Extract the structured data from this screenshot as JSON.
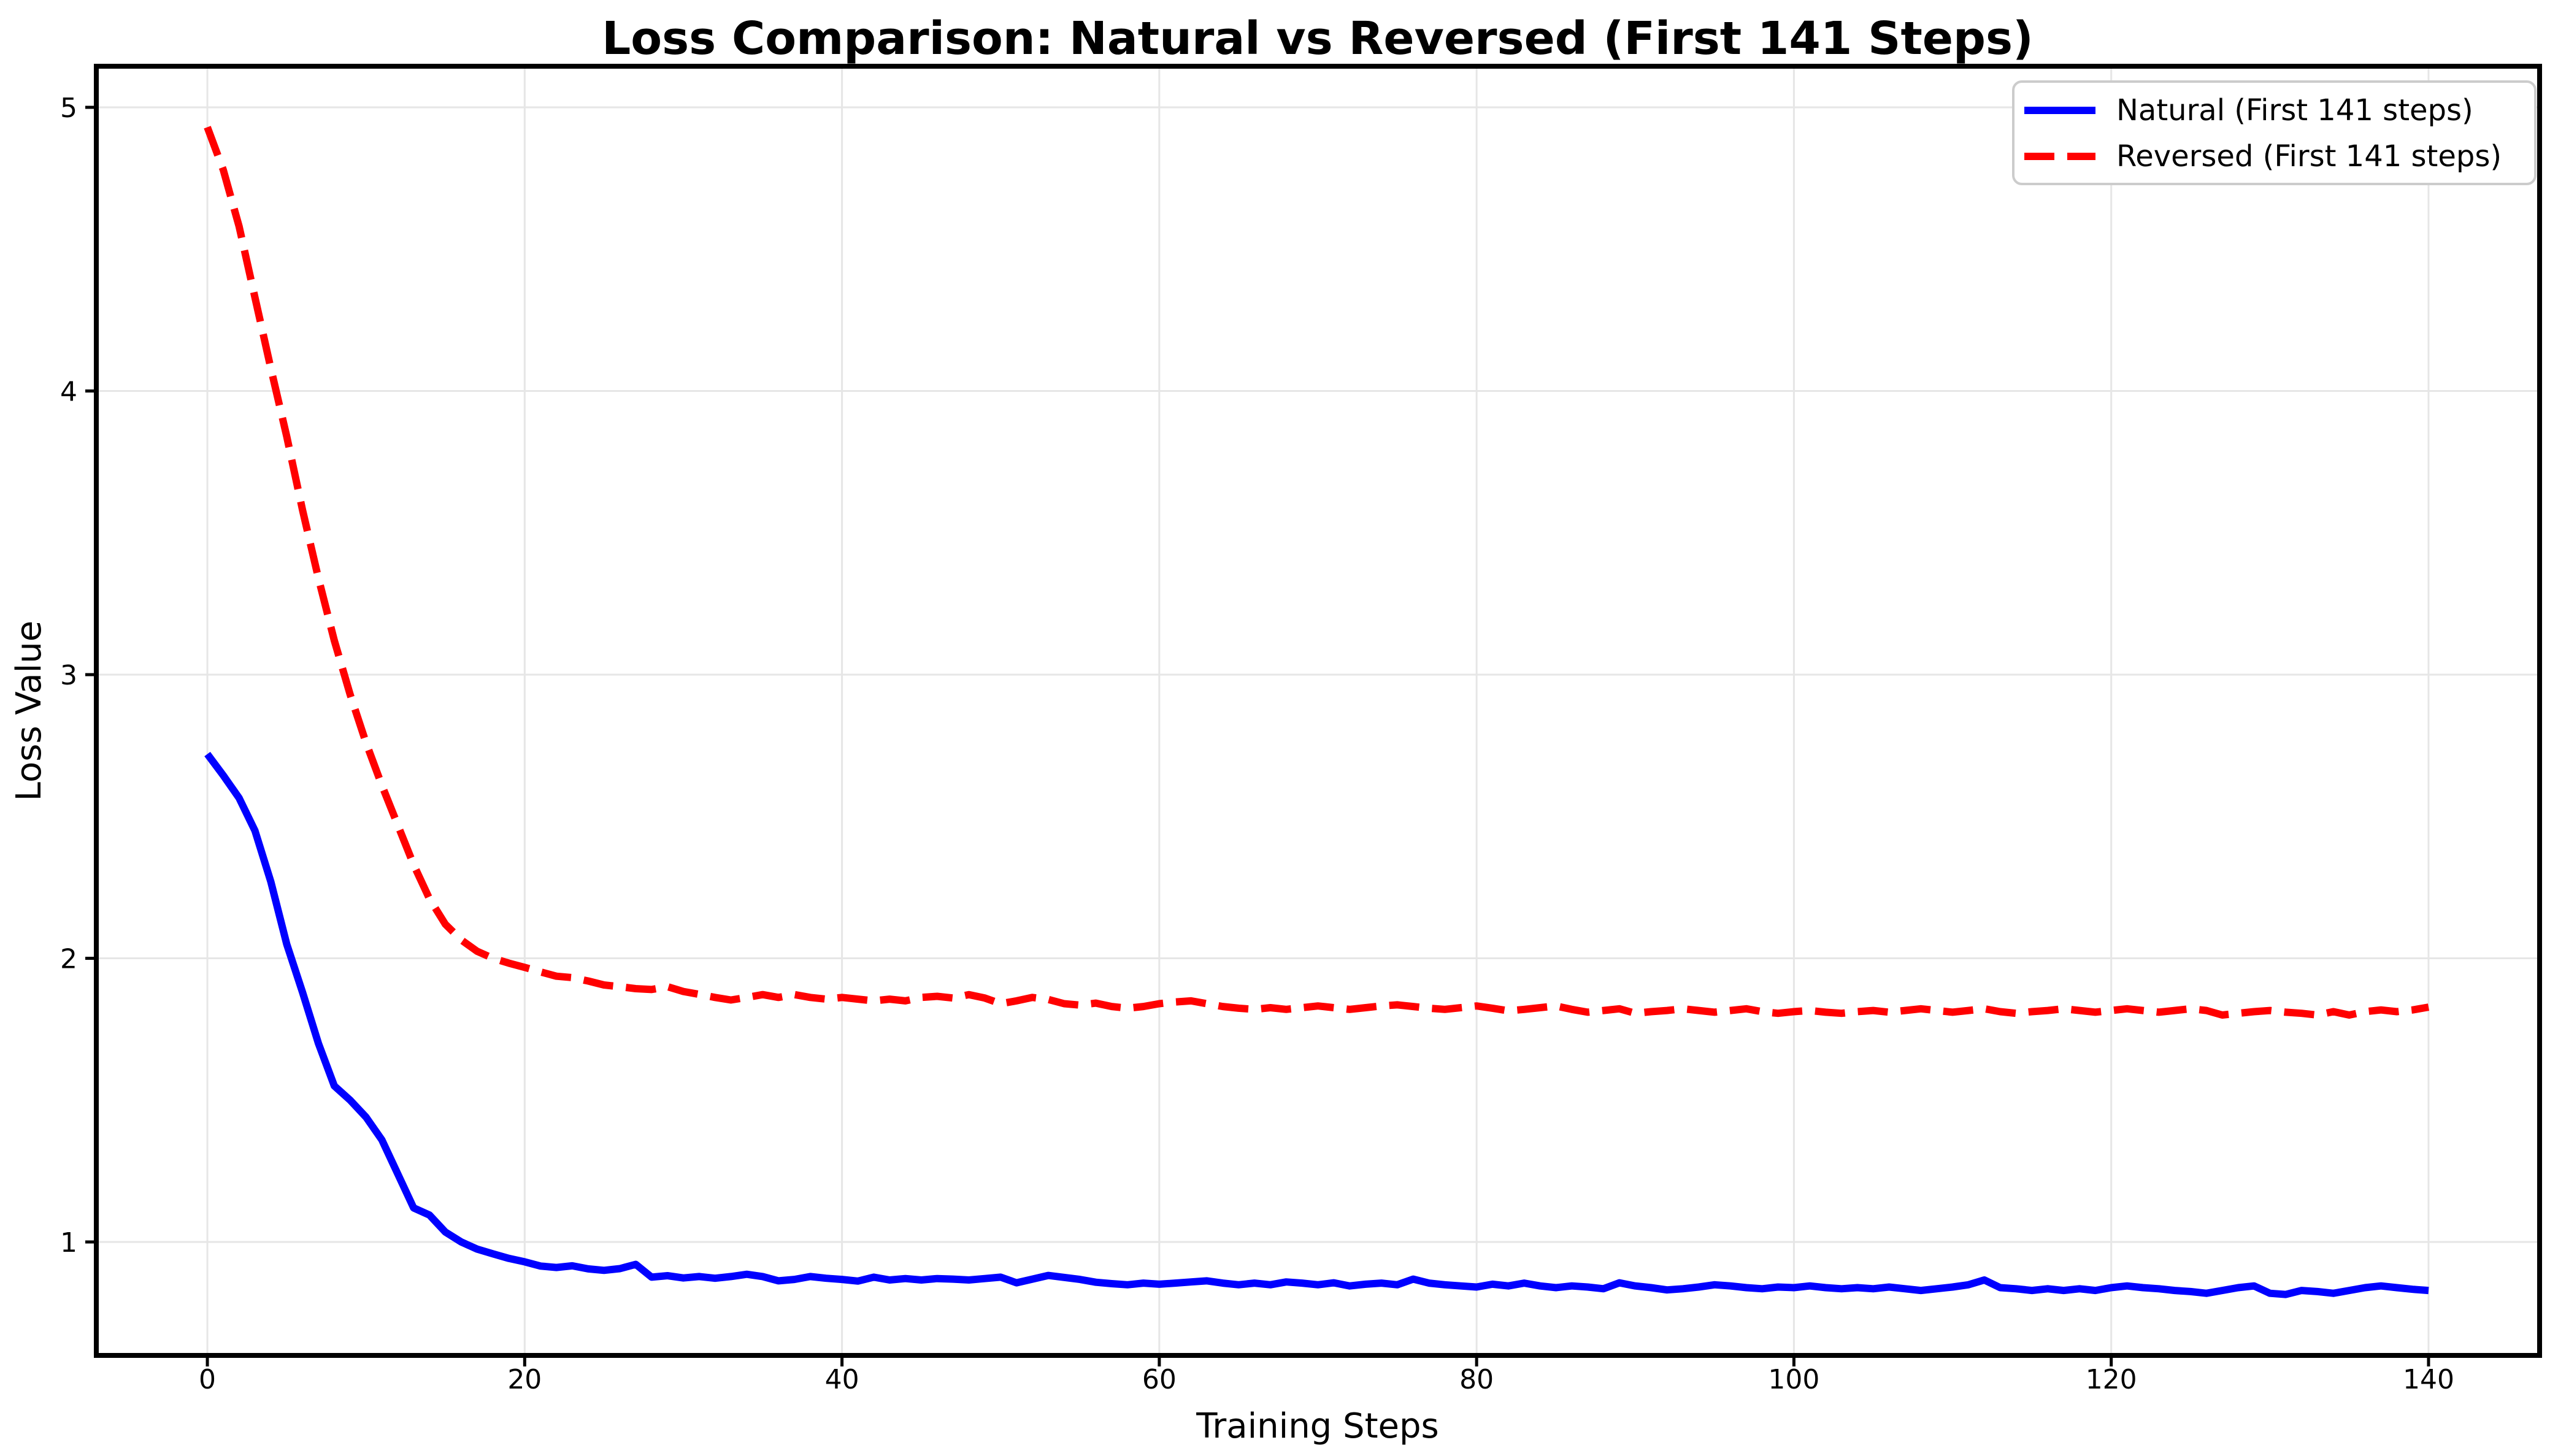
{
  "chart_data": {
    "type": "line",
    "title": "Loss Comparison: Natural vs Reversed (First 141 Steps)",
    "xlabel": "Training Steps",
    "ylabel": "Loss Value",
    "xlim": [
      -7,
      147
    ],
    "ylim": [
      0.6,
      5.145
    ],
    "xticks": [
      0,
      20,
      40,
      60,
      80,
      100,
      120,
      140
    ],
    "yticks": [
      1,
      2,
      3,
      4,
      5
    ],
    "grid": true,
    "grid_color": "#e6e6e6",
    "spine_color": "#000000",
    "legend_position": "upper right",
    "x_values": "training steps 0 through 140, increment 1 (index = step)",
    "series": [
      {
        "name": "Natural (First 141 steps)",
        "color": "#0000ff",
        "style": "solid",
        "values": [
          2.72,
          2.645,
          2.565,
          2.45,
          2.27,
          2.05,
          1.88,
          1.7,
          1.55,
          1.5,
          1.44,
          1.36,
          1.24,
          1.12,
          1.095,
          1.035,
          1.0,
          0.975,
          0.958,
          0.942,
          0.93,
          0.915,
          0.91,
          0.916,
          0.905,
          0.9,
          0.906,
          0.921,
          0.876,
          0.881,
          0.873,
          0.878,
          0.872,
          0.878,
          0.886,
          0.878,
          0.863,
          0.868,
          0.878,
          0.872,
          0.868,
          0.862,
          0.876,
          0.866,
          0.871,
          0.866,
          0.871,
          0.869,
          0.866,
          0.871,
          0.876,
          0.856,
          0.869,
          0.882,
          0.875,
          0.868,
          0.858,
          0.853,
          0.849,
          0.855,
          0.851,
          0.855,
          0.859,
          0.863,
          0.855,
          0.849,
          0.855,
          0.849,
          0.859,
          0.855,
          0.849,
          0.856,
          0.845,
          0.851,
          0.855,
          0.849,
          0.869,
          0.855,
          0.849,
          0.845,
          0.841,
          0.851,
          0.845,
          0.855,
          0.845,
          0.839,
          0.845,
          0.841,
          0.835,
          0.856,
          0.845,
          0.839,
          0.831,
          0.835,
          0.841,
          0.849,
          0.845,
          0.839,
          0.835,
          0.841,
          0.839,
          0.845,
          0.839,
          0.835,
          0.839,
          0.835,
          0.841,
          0.835,
          0.829,
          0.835,
          0.841,
          0.849,
          0.866,
          0.839,
          0.835,
          0.829,
          0.835,
          0.829,
          0.835,
          0.829,
          0.839,
          0.845,
          0.839,
          0.835,
          0.829,
          0.825,
          0.819,
          0.829,
          0.839,
          0.845,
          0.819,
          0.815,
          0.829,
          0.825,
          0.819,
          0.829,
          0.839,
          0.845,
          0.839,
          0.833,
          0.829
        ]
      },
      {
        "name": "Reversed (First 141 steps)",
        "color": "#ff0000",
        "style": "dashed",
        "values": [
          4.93,
          4.78,
          4.58,
          4.33,
          4.08,
          3.84,
          3.58,
          3.34,
          3.12,
          2.93,
          2.76,
          2.61,
          2.47,
          2.33,
          2.21,
          2.12,
          2.065,
          2.025,
          2.0,
          1.983,
          1.968,
          1.952,
          1.937,
          1.932,
          1.92,
          1.906,
          1.9,
          1.893,
          1.89,
          1.9,
          1.883,
          1.873,
          1.862,
          1.853,
          1.862,
          1.872,
          1.862,
          1.872,
          1.862,
          1.856,
          1.862,
          1.856,
          1.85,
          1.856,
          1.85,
          1.862,
          1.866,
          1.86,
          1.872,
          1.86,
          1.84,
          1.85,
          1.862,
          1.855,
          1.84,
          1.835,
          1.842,
          1.83,
          1.824,
          1.83,
          1.84,
          1.846,
          1.85,
          1.84,
          1.83,
          1.824,
          1.82,
          1.826,
          1.82,
          1.826,
          1.832,
          1.826,
          1.82,
          1.826,
          1.832,
          1.836,
          1.83,
          1.824,
          1.82,
          1.826,
          1.832,
          1.824,
          1.815,
          1.82,
          1.826,
          1.832,
          1.82,
          1.81,
          1.816,
          1.822,
          1.806,
          1.812,
          1.816,
          1.822,
          1.816,
          1.81,
          1.816,
          1.822,
          1.812,
          1.806,
          1.812,
          1.816,
          1.81,
          1.806,
          1.812,
          1.816,
          1.81,
          1.816,
          1.822,
          1.816,
          1.81,
          1.816,
          1.822,
          1.812,
          1.806,
          1.812,
          1.816,
          1.822,
          1.816,
          1.81,
          1.816,
          1.822,
          1.816,
          1.81,
          1.816,
          1.822,
          1.816,
          1.8,
          1.806,
          1.812,
          1.816,
          1.81,
          1.806,
          1.8,
          1.812,
          1.8,
          1.812,
          1.818,
          1.812,
          1.818,
          1.828
        ]
      }
    ]
  }
}
